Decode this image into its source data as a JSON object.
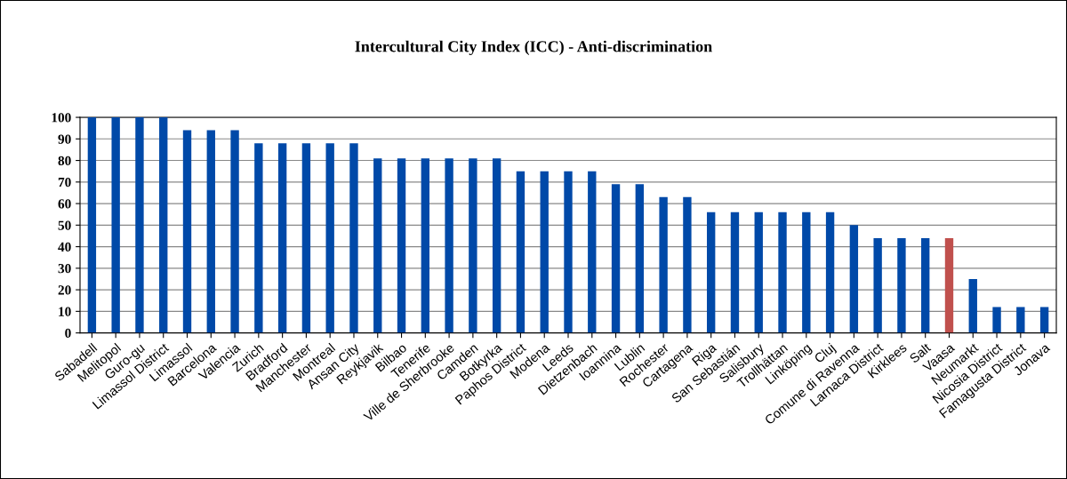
{
  "chart_data": {
    "type": "bar",
    "title": "Intercultural City Index (ICC) - Anti-discrimination",
    "categories": [
      "Sabadell",
      "Melitopol",
      "Guro-gu",
      "Limassol District",
      "Limassol",
      "Barcelona",
      "Valencia",
      "Zurich",
      "Bradford",
      "Manchester",
      "Montreal",
      "Ansan City",
      "Reykjavik",
      "Bilbao",
      "Tenerife",
      "Ville de Sherbrooke",
      "Camden",
      "Botkyrka",
      "Paphos District",
      "Modena",
      "Leeds",
      "Dietzenbach",
      "Ioannina",
      "Lublin",
      "Rochester",
      "Cartagena",
      "Riga",
      "San Sebastián",
      "Salisbury",
      "Trollhättan",
      "Linköping",
      "Cluj",
      "Comune di Ravenna",
      "Larnaca District",
      "Kirklees",
      "Salt",
      "Vaasa",
      "Neumarkt",
      "Nicosia District",
      "Famagusta District",
      "Jonava"
    ],
    "values": [
      100,
      100,
      100,
      100,
      94,
      94,
      94,
      88,
      88,
      88,
      88,
      88,
      81,
      81,
      81,
      81,
      81,
      81,
      75,
      75,
      75,
      75,
      69,
      69,
      63,
      63,
      56,
      56,
      56,
      56,
      56,
      56,
      50,
      44,
      44,
      44,
      44,
      25,
      12,
      12,
      12
    ],
    "colors": [
      "#0049a8",
      "#0049a8",
      "#0049a8",
      "#0049a8",
      "#0049a8",
      "#0049a8",
      "#0049a8",
      "#0049a8",
      "#0049a8",
      "#0049a8",
      "#0049a8",
      "#0049a8",
      "#0049a8",
      "#0049a8",
      "#0049a8",
      "#0049a8",
      "#0049a8",
      "#0049a8",
      "#0049a8",
      "#0049a8",
      "#0049a8",
      "#0049a8",
      "#0049a8",
      "#0049a8",
      "#0049a8",
      "#0049a8",
      "#0049a8",
      "#0049a8",
      "#0049a8",
      "#0049a8",
      "#0049a8",
      "#0049a8",
      "#0049a8",
      "#0049a8",
      "#0049a8",
      "#0049a8",
      "#c0504d",
      "#0049a8",
      "#0049a8",
      "#0049a8",
      "#0049a8"
    ],
    "ylim": [
      0,
      100
    ],
    "yticks": [
      0,
      10,
      20,
      30,
      40,
      50,
      60,
      70,
      80,
      90,
      100
    ],
    "grid": "y"
  }
}
